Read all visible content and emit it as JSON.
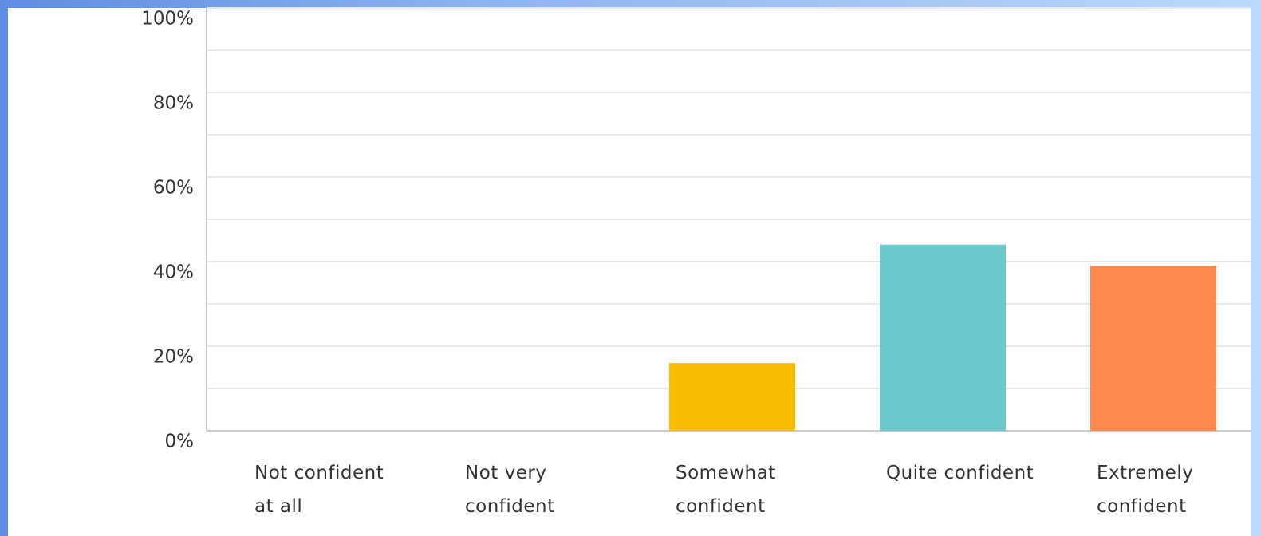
{
  "chart_data": {
    "type": "bar",
    "categories": [
      "Not confident at all",
      "Not very confident",
      "Somewhat confident",
      "Quite confident",
      "Extremely confident"
    ],
    "values": [
      0,
      0,
      16,
      44,
      39
    ],
    "colors": [
      "#507cb6",
      "#9aa6b2",
      "#f9be00",
      "#6bc8cd",
      "#ff8b4f"
    ],
    "ylim": [
      0,
      100
    ],
    "yticks": [
      {
        "value": 0,
        "label": "0%"
      },
      {
        "value": 20,
        "label": "20%"
      },
      {
        "value": 40,
        "label": "40%"
      },
      {
        "value": 60,
        "label": "60%"
      },
      {
        "value": 80,
        "label": "80%"
      },
      {
        "value": 100,
        "label": "100%"
      }
    ],
    "grid": true
  }
}
